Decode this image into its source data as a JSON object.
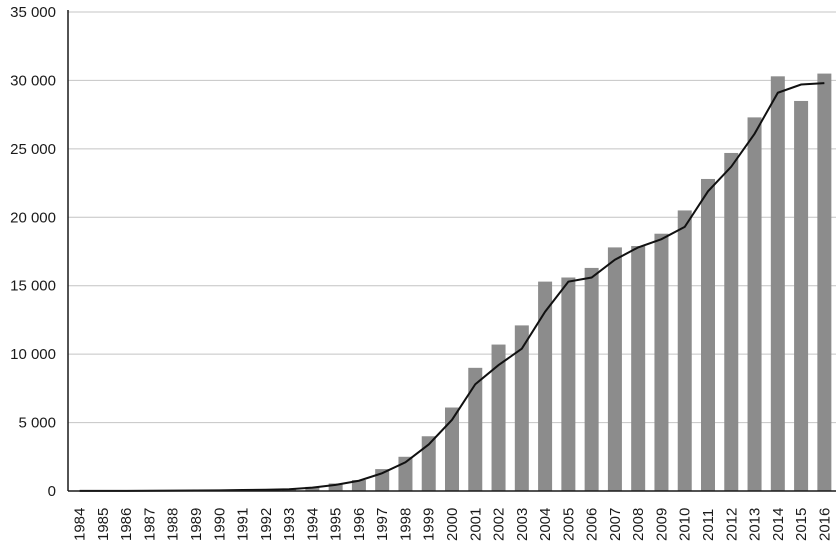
{
  "chart_data": {
    "type": "bar",
    "title": "",
    "xlabel": "",
    "ylabel": "",
    "ylim": [
      0,
      35000
    ],
    "yticks": [
      0,
      5000,
      10000,
      15000,
      20000,
      25000,
      30000,
      35000
    ],
    "ytick_labels": [
      "0",
      "5 000",
      "10 000",
      "15 000",
      "20 000",
      "25 000",
      "30 000",
      "35 000"
    ],
    "grid": true,
    "legend": "none",
    "categories": [
      "1984",
      "1985",
      "1986",
      "1987",
      "1988",
      "1989",
      "1990",
      "1991",
      "1992",
      "1993",
      "1994",
      "1995",
      "1996",
      "1997",
      "1998",
      "1999",
      "2000",
      "2001",
      "2002",
      "2003",
      "2004",
      "2005",
      "2006",
      "2007",
      "2008",
      "2009",
      "2010",
      "2011",
      "2012",
      "2013",
      "2014",
      "2015",
      "2016"
    ],
    "series": [
      {
        "kind": "bar",
        "color": "#8c8c8c",
        "values": [
          5,
          10,
          15,
          20,
          30,
          40,
          60,
          80,
          100,
          150,
          300,
          550,
          800,
          1600,
          2500,
          4000,
          6100,
          9000,
          10700,
          12100,
          15300,
          15600,
          16300,
          17800,
          17900,
          18800,
          20500,
          22800,
          24700,
          27300,
          30300,
          28500,
          30500
        ]
      },
      {
        "kind": "line",
        "color": "#111111",
        "values": [
          5,
          8,
          12,
          18,
          25,
          35,
          50,
          70,
          90,
          130,
          250,
          450,
          750,
          1300,
          2100,
          3400,
          5200,
          7800,
          9200,
          10400,
          13100,
          15300,
          15600,
          16900,
          17800,
          18400,
          19300,
          21900,
          23700,
          26100,
          29100,
          29700,
          29800
        ]
      }
    ]
  }
}
